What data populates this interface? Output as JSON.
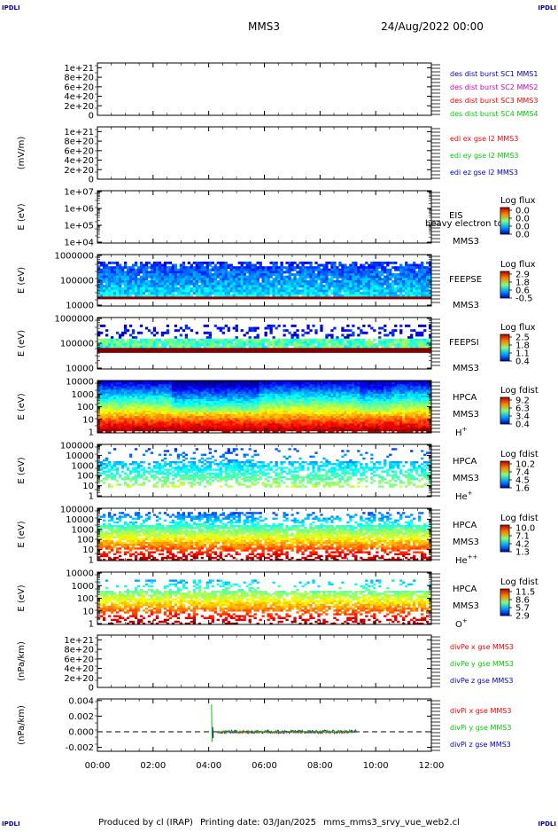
{
  "header": {
    "corner_label": "IPDLI",
    "spacecraft": "MMS3",
    "date_time": "24/Aug/2022 00:00"
  },
  "footer": {
    "produced_by": "Produced by cl (IRAP)",
    "printing_date": "Printing date: 03/Jan/2025",
    "file_name": "mms_mms3_srvy_vue_web2.cl"
  },
  "colors": {
    "red": "#ff0000",
    "green": "#00cc00",
    "blue": "#0000cc",
    "magenta": "#cc00cc",
    "frame": "#000000"
  },
  "chart_data": [
    {
      "type": "line",
      "ylabel": "",
      "yticks": [
        "1e+21",
        "8e+20",
        "6e+20",
        "4e+20",
        "2e+20",
        "0"
      ],
      "ylim": [
        0,
        1.1e+21
      ],
      "series": [
        {
          "name": "des dist burst SC1 MMS1",
          "color": "#0000cc"
        },
        {
          "name": "des dist burst SC2 MMS2",
          "color": "#cc00cc"
        },
        {
          "name": "des dist burst SC3 MMS3",
          "color": "#ff0000"
        },
        {
          "name": "des dist burst SC4 MMS4",
          "color": "#00cc00"
        }
      ]
    },
    {
      "type": "line",
      "ylabel": "(mV/m)",
      "yticks": [
        "1e+21",
        "8e+20",
        "6e+20",
        "4e+20",
        "2e+20",
        "0"
      ],
      "ylim": [
        0,
        1.1e+21
      ],
      "series": [
        {
          "name": "edi ex gse l2 MMS3",
          "color": "#ff0000"
        },
        {
          "name": "edi ey gse l2 MMS3",
          "color": "#00cc00"
        },
        {
          "name": "edi ez gse l2 MMS3",
          "color": "#0000cc"
        }
      ]
    },
    {
      "type": "heatmap",
      "ylabel": "E (eV)",
      "yticks": [
        "1e+07",
        "1e+06",
        "1e+05",
        "1e+04"
      ],
      "instrument": "EIS",
      "note": "heavy electron to",
      "spacecraft": "MMS3",
      "colorbar_label": "Log flux",
      "colorbar_ticks": [
        "0.0",
        "0.0",
        "0.0",
        "0.0"
      ],
      "fill": "empty"
    },
    {
      "type": "heatmap",
      "ylabel": "E (eV)",
      "yticks": [
        "1000000",
        "100000",
        "10000"
      ],
      "instrument": "FEEPSE",
      "spacecraft": "MMS3",
      "colorbar_label": "Log flux",
      "colorbar_ticks": [
        "2.9",
        "1.8",
        "0.6",
        "-0.5"
      ],
      "fill": "feepse"
    },
    {
      "type": "heatmap",
      "ylabel": "E (eV)",
      "yticks": [
        "1000000",
        "100000",
        "10000"
      ],
      "instrument": "FEEPSI",
      "spacecraft": "MMS3",
      "colorbar_label": "Log flux",
      "colorbar_ticks": [
        "2.5",
        "1.8",
        "1.1",
        "0.4"
      ],
      "fill": "feepsi"
    },
    {
      "type": "heatmap",
      "ylabel": "E (eV)",
      "yticks": [
        "10000",
        "1000",
        "100",
        "10",
        "1"
      ],
      "instrument": "HPCA",
      "spacecraft": "MMS3",
      "species": "H",
      "species_sup": "+",
      "colorbar_label": "Log fdist",
      "colorbar_ticks": [
        "9.2",
        "6.3",
        "3.4",
        "0.4"
      ],
      "fill": "hplus"
    },
    {
      "type": "heatmap",
      "ylabel": "E (eV)",
      "yticks": [
        "100000",
        "10000",
        "1000",
        "100",
        "10",
        "1"
      ],
      "instrument": "HPCA",
      "spacecraft": "MMS3",
      "species": "He",
      "species_sup": "+",
      "colorbar_label": "Log fdist",
      "colorbar_ticks": [
        "10.2",
        "7.4",
        "4.5",
        "1.6"
      ],
      "fill": "heplus"
    },
    {
      "type": "heatmap",
      "ylabel": "E (eV)",
      "yticks": [
        "100000",
        "10000",
        "1000",
        "100",
        "10",
        "1"
      ],
      "instrument": "HPCA",
      "spacecraft": "MMS3",
      "species": "He",
      "species_sup": "++",
      "colorbar_label": "Log fdist",
      "colorbar_ticks": [
        "10.0",
        "7.1",
        "4.2",
        "1.3"
      ],
      "fill": "hepp"
    },
    {
      "type": "heatmap",
      "ylabel": "E (eV)",
      "yticks": [
        "10000",
        "1000",
        "100",
        "10",
        "1"
      ],
      "instrument": "HPCA",
      "spacecraft": "MMS3",
      "species": "O",
      "species_sup": "+",
      "colorbar_label": "Log fdist",
      "colorbar_ticks": [
        "11.5",
        "8.6",
        "5.7",
        "2.9"
      ],
      "fill": "oplus"
    },
    {
      "type": "line",
      "ylabel": "(nPa/km)",
      "yticks": [
        "1e+21",
        "8e+20",
        "6e+20",
        "4e+20",
        "2e+20",
        "0"
      ],
      "ylim": [
        0,
        1.1e+21
      ],
      "series": [
        {
          "name": "divPe x gse MMS3",
          "color": "#ff0000"
        },
        {
          "name": "divPe y gse MMS3",
          "color": "#00cc00"
        },
        {
          "name": "divPe z gse MMS3",
          "color": "#0000cc"
        }
      ]
    },
    {
      "type": "line",
      "ylabel": "(nPa/km)",
      "yticks": [
        "0.004",
        "0.002",
        "0.000",
        "-0.002"
      ],
      "ylim": [
        -0.0025,
        0.0042
      ],
      "series": [
        {
          "name": "divPi x gse MMS3",
          "color": "#ff0000"
        },
        {
          "name": "divPi y gse MMS3",
          "color": "#00cc00"
        },
        {
          "name": "divPi z gse MMS3",
          "color": "#0000cc"
        }
      ],
      "data_span_hours": [
        4.1,
        9.3
      ]
    }
  ],
  "time_axis": {
    "ticks": [
      "00:00",
      "02:00",
      "04:00",
      "06:00",
      "08:00",
      "10:00",
      "12:00"
    ],
    "range_hours": [
      0,
      12
    ]
  }
}
